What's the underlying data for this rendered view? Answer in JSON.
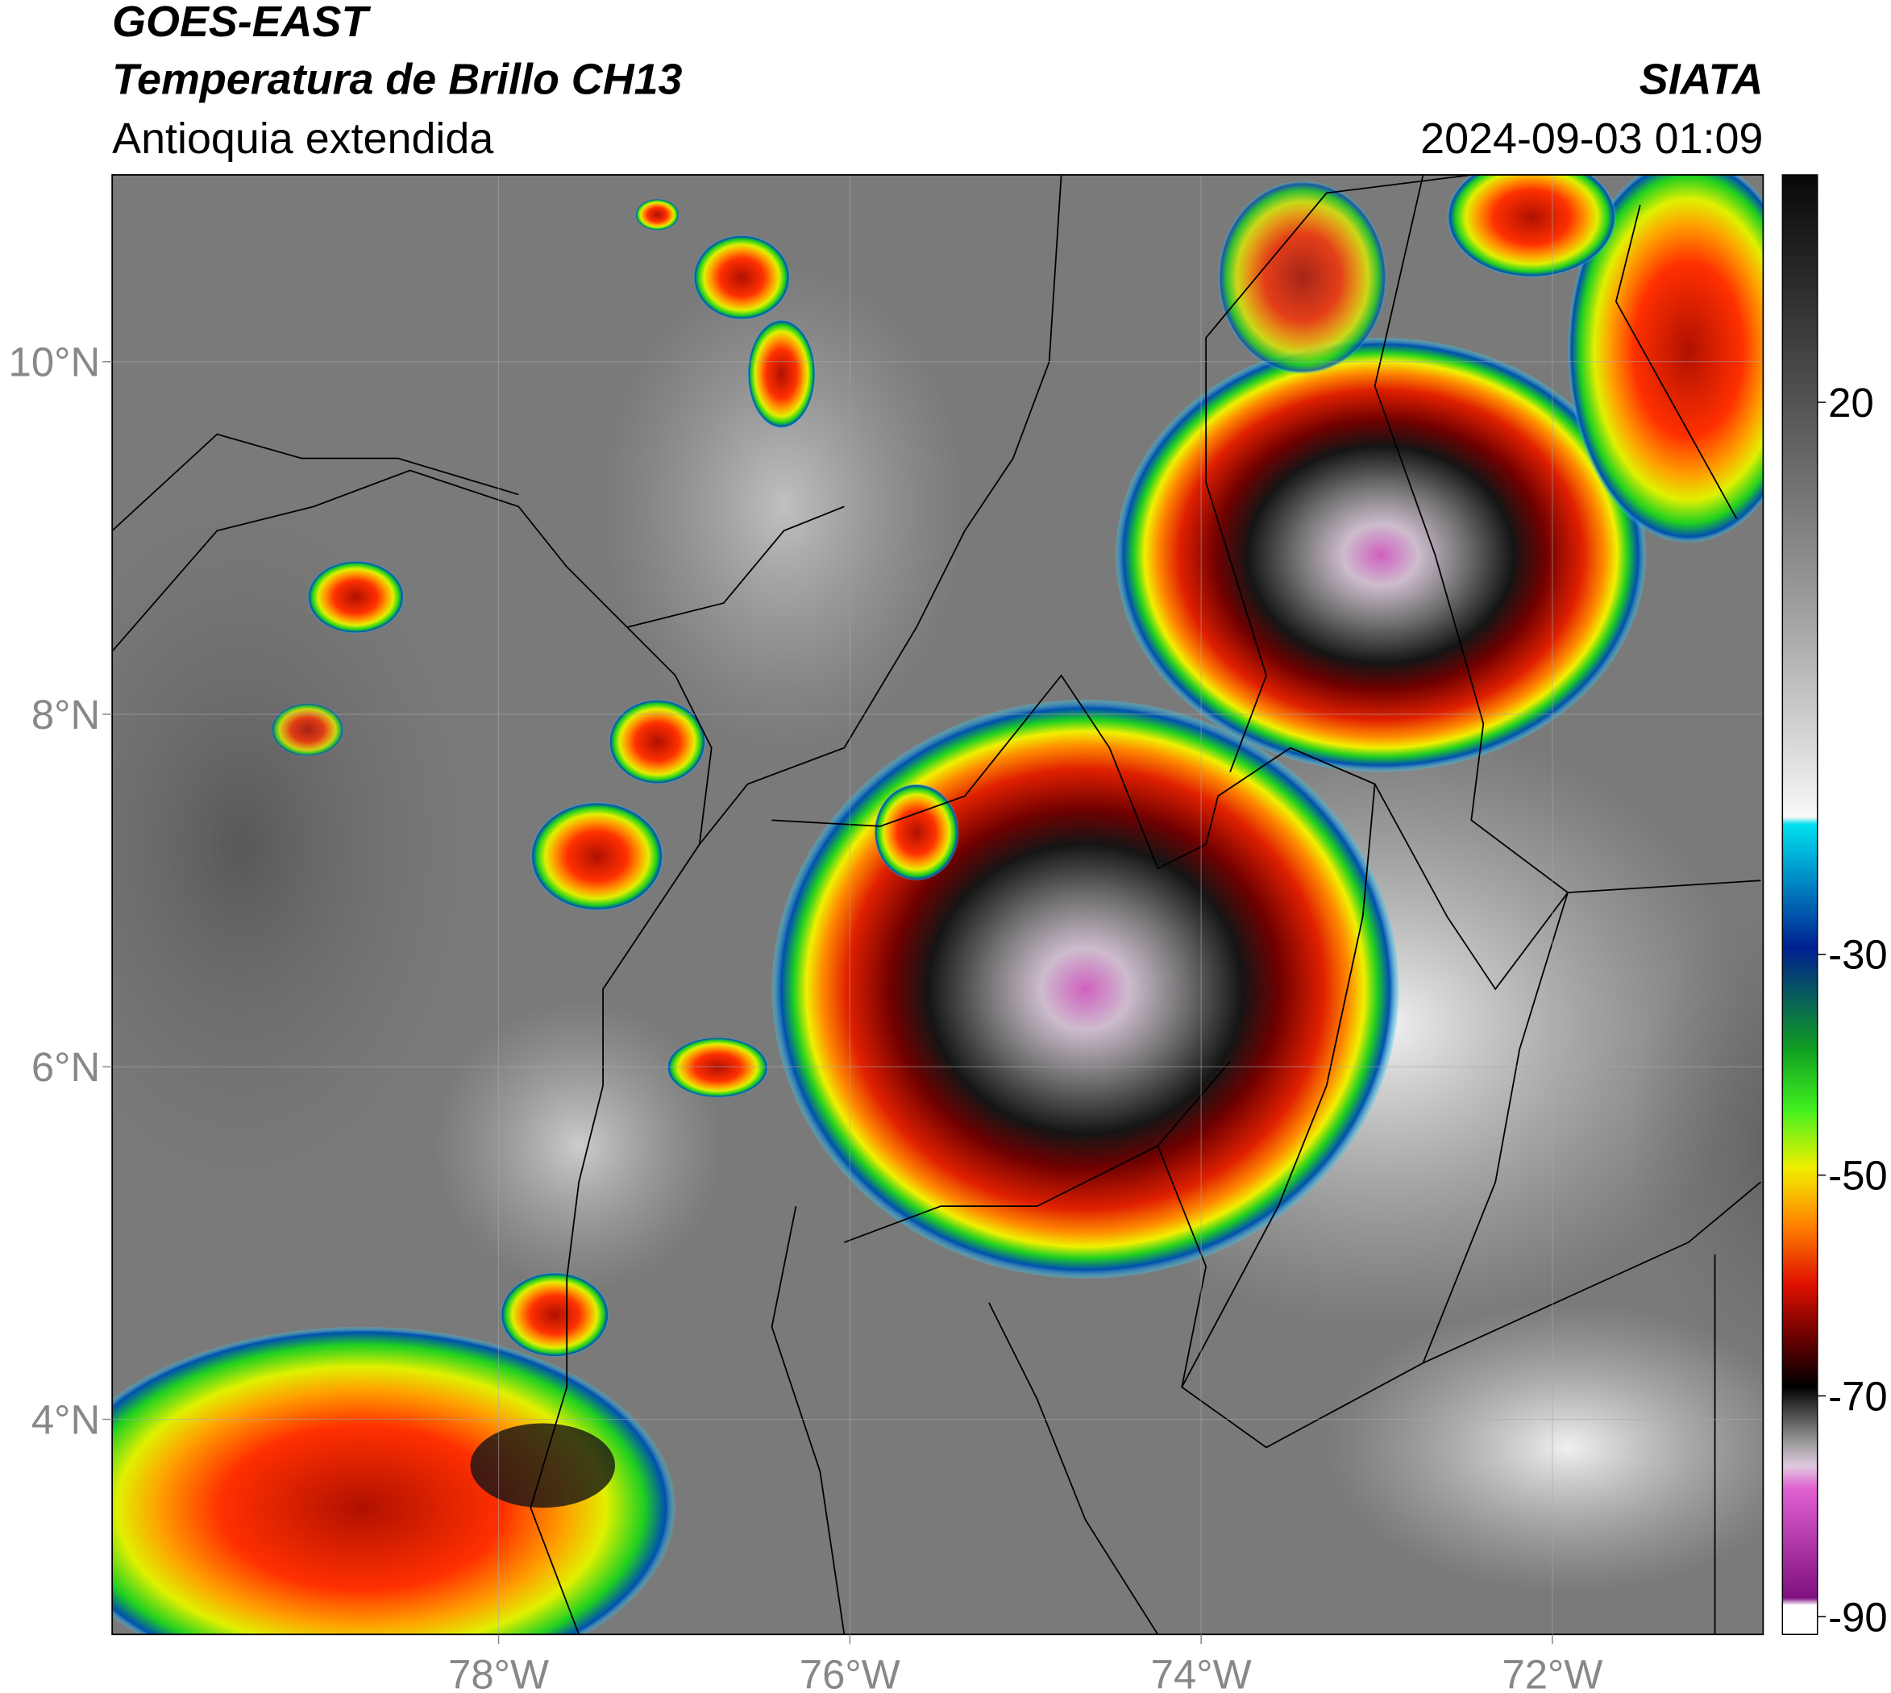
{
  "header": {
    "title": "GOES-EAST",
    "subtitle": "Temperatura de Brillo CH13",
    "region": "Antioquia extendida",
    "source": "SIATA",
    "datetime": "2024-09-03 01:09"
  },
  "map": {
    "xlim": [
      -80.2,
      -70.8
    ],
    "ylim": [
      2.78,
      11.06
    ],
    "xticks": [
      {
        "value": -78,
        "label": "78°W"
      },
      {
        "value": -76,
        "label": "76°W"
      },
      {
        "value": -74,
        "label": "74°W"
      },
      {
        "value": -72,
        "label": "72°W"
      }
    ],
    "yticks": [
      {
        "value": 4,
        "label": "4°N"
      },
      {
        "value": 6,
        "label": "6°N"
      },
      {
        "value": 8,
        "label": "8°N"
      },
      {
        "value": 10,
        "label": "10°N"
      }
    ],
    "grid": true
  },
  "colorbar": {
    "lim": [
      -91.6,
      40.6
    ],
    "ticks": [
      20,
      -30,
      -50,
      -70,
      -90
    ]
  }
}
